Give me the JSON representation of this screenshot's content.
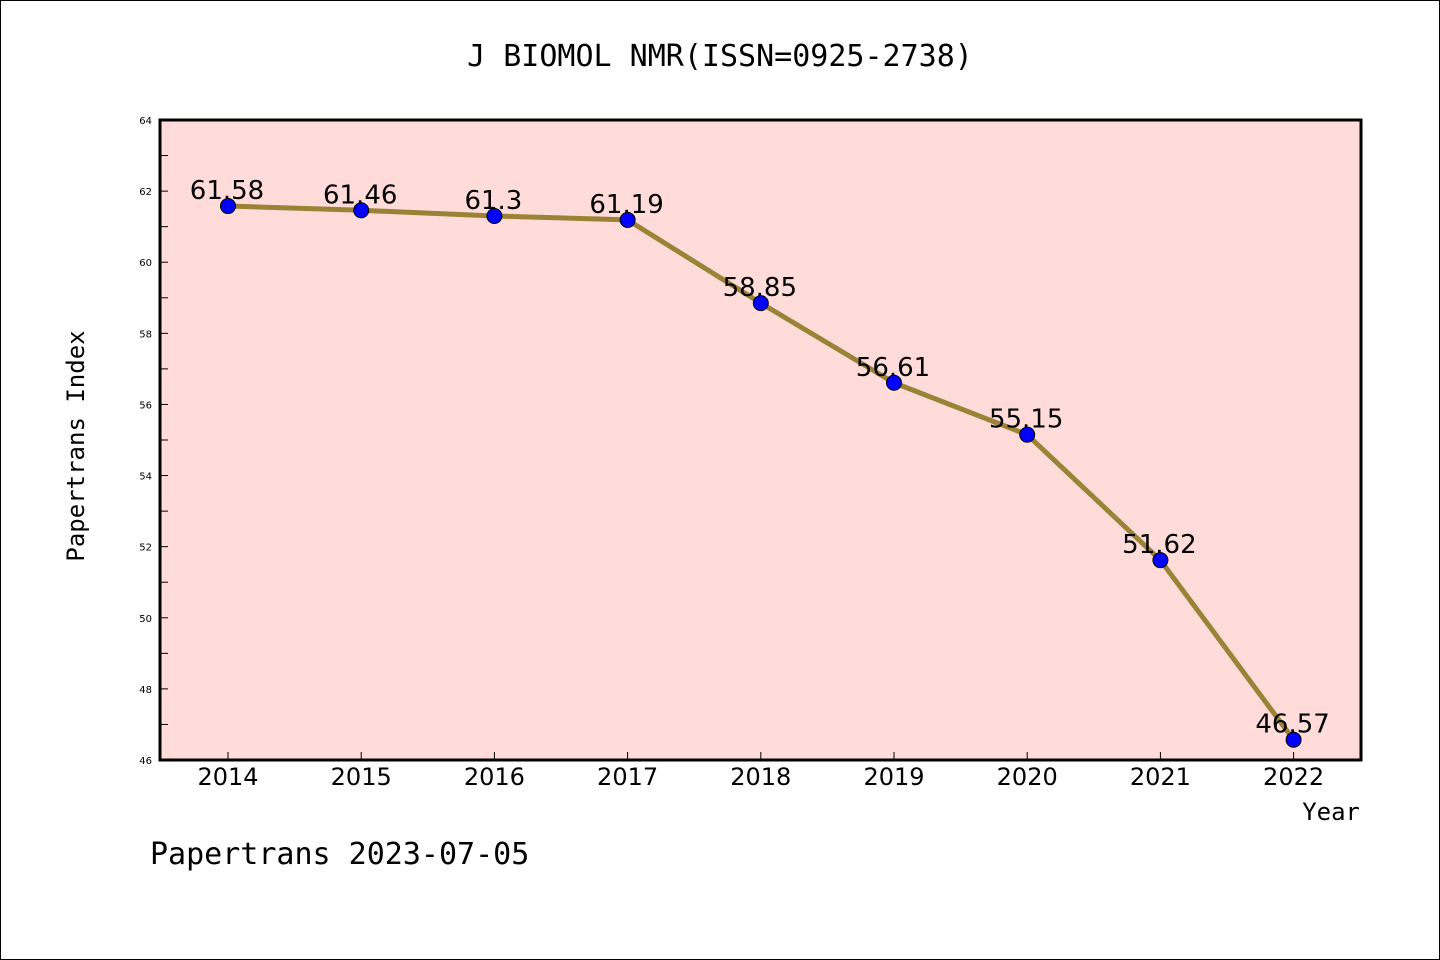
{
  "chart_data": {
    "type": "line",
    "title": "J BIOMOL NMR(ISSN=0925-2738)",
    "xlabel": "Year",
    "ylabel": "Papertrans Index",
    "x": [
      "2014",
      "2015",
      "2016",
      "2017",
      "2018",
      "2019",
      "2020",
      "2021",
      "2022"
    ],
    "values": [
      61.58,
      61.46,
      61.3,
      61.19,
      58.85,
      56.61,
      55.15,
      51.62,
      46.57
    ],
    "data_labels": [
      "61.58",
      "61.46",
      "61.3",
      "61.19",
      "58.85",
      "56.61",
      "55.15",
      "51.62",
      "46.57"
    ],
    "ylim": [
      46,
      64
    ],
    "yticks": [
      "46",
      "48",
      "50",
      "52",
      "54",
      "56",
      "58",
      "60",
      "62",
      "64"
    ],
    "grid": false,
    "legend": "none",
    "colors": {
      "plot_background": "#FFDCDA",
      "line": "#9B8236",
      "marker": "#0000FF",
      "axes": "#000000"
    }
  },
  "footer": "Papertrans 2023-07-05"
}
